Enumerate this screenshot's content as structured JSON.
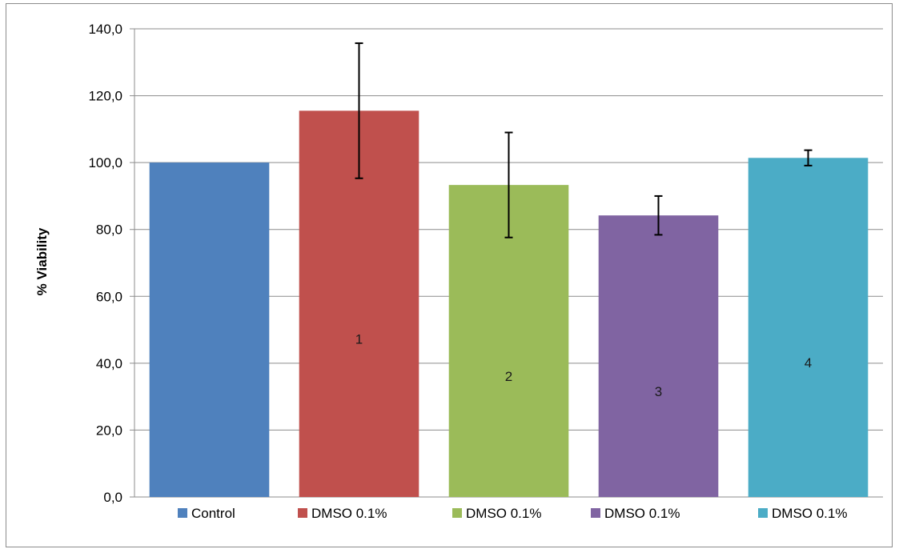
{
  "chart_data": {
    "type": "bar",
    "title": "",
    "xlabel": "",
    "ylabel": "% Viability",
    "ylim": [
      0,
      140
    ],
    "yticks": [
      0,
      20,
      40,
      60,
      80,
      100,
      120,
      140
    ],
    "ytick_labels": [
      "0,0",
      "20,0",
      "40,0",
      "60,0",
      "80,0",
      "100,0",
      "120,0",
      "140,0"
    ],
    "grid": true,
    "legend_position": "bottom",
    "series": [
      {
        "name": "Control",
        "value": 100.0,
        "error": null,
        "bar_label": "",
        "color": "#4F81BD"
      },
      {
        "name": "DMSO 0.1%",
        "value": 115.5,
        "error": 20.2,
        "bar_label": "1",
        "color": "#C0504D"
      },
      {
        "name": "DMSO 0.1%",
        "value": 93.3,
        "error": 15.7,
        "bar_label": "2",
        "color": "#9BBB59"
      },
      {
        "name": "DMSO 0.1%",
        "value": 84.2,
        "error": 5.8,
        "bar_label": "3",
        "color": "#8064A2"
      },
      {
        "name": "DMSO 0.1%",
        "value": 101.4,
        "error": 2.3,
        "bar_label": "4",
        "color": "#4BACC6"
      }
    ]
  }
}
